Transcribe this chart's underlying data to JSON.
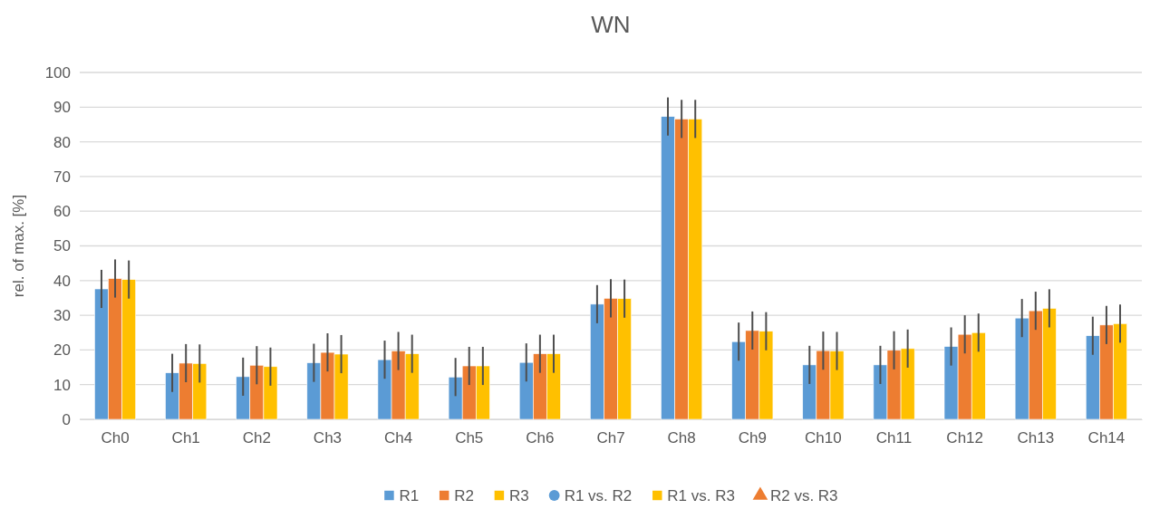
{
  "chart_data": {
    "type": "bar",
    "title": "WN",
    "ylabel": "rel. of max. [%]",
    "categories": [
      "Ch0",
      "Ch1",
      "Ch2",
      "Ch3",
      "Ch4",
      "Ch5",
      "Ch6",
      "Ch7",
      "Ch8",
      "Ch9",
      "Ch10",
      "Ch11",
      "Ch12",
      "Ch13",
      "Ch14"
    ],
    "series": [
      {
        "name": "R1",
        "color": "#5b9bd5",
        "values": [
          37.6,
          13.4,
          12.3,
          16.3,
          17.2,
          12.2,
          16.4,
          33.2,
          87.3,
          22.4,
          15.7,
          15.7,
          21.0,
          29.2,
          24.1
        ],
        "errors": [
          5.5,
          5.5,
          5.5,
          5.5,
          5.5,
          5.5,
          5.5,
          5.5,
          5.5,
          5.5,
          5.5,
          5.5,
          5.5,
          5.5,
          5.5
        ]
      },
      {
        "name": "R2",
        "color": "#ed7d31",
        "values": [
          40.6,
          16.2,
          15.6,
          19.3,
          19.7,
          15.4,
          18.9,
          34.9,
          86.6,
          25.6,
          19.8,
          19.9,
          24.5,
          31.3,
          27.2
        ],
        "errors": [
          5.5,
          5.5,
          5.5,
          5.5,
          5.5,
          5.5,
          5.5,
          5.5,
          5.5,
          5.5,
          5.5,
          5.5,
          5.5,
          5.5,
          5.5
        ]
      },
      {
        "name": "R3",
        "color": "#ffc000",
        "values": [
          40.3,
          16.1,
          15.2,
          18.8,
          18.9,
          15.4,
          18.9,
          34.8,
          86.6,
          25.4,
          19.7,
          20.4,
          25.0,
          32.0,
          27.6
        ],
        "errors": [
          5.5,
          5.5,
          5.5,
          5.5,
          5.5,
          5.5,
          5.5,
          5.5,
          5.5,
          5.5,
          5.5,
          5.5,
          5.5,
          5.5,
          5.5
        ]
      },
      {
        "name": "R1 vs. R2",
        "type": "scatter",
        "marker": "circle",
        "color": "#5b9bd5",
        "values": [
          null,
          null,
          null,
          null,
          null,
          null,
          null,
          null,
          null,
          null,
          null,
          null,
          null,
          null,
          null
        ]
      },
      {
        "name": "R1 vs. R3",
        "type": "scatter",
        "marker": "square",
        "color": "#ffc000",
        "values": [
          null,
          null,
          null,
          null,
          null,
          null,
          null,
          null,
          null,
          null,
          null,
          null,
          null,
          null,
          null
        ]
      },
      {
        "name": "R2 vs. R3",
        "type": "scatter",
        "marker": "triangle",
        "color": "#ed7d31",
        "values": [
          null,
          null,
          null,
          null,
          null,
          null,
          null,
          null,
          null,
          null,
          null,
          null,
          null,
          null,
          null
        ]
      }
    ],
    "ylim": [
      0,
      100
    ],
    "yticks": [
      0,
      10,
      20,
      30,
      40,
      50,
      60,
      70,
      80,
      90,
      100
    ],
    "grid": "y",
    "legend": "bottom"
  }
}
